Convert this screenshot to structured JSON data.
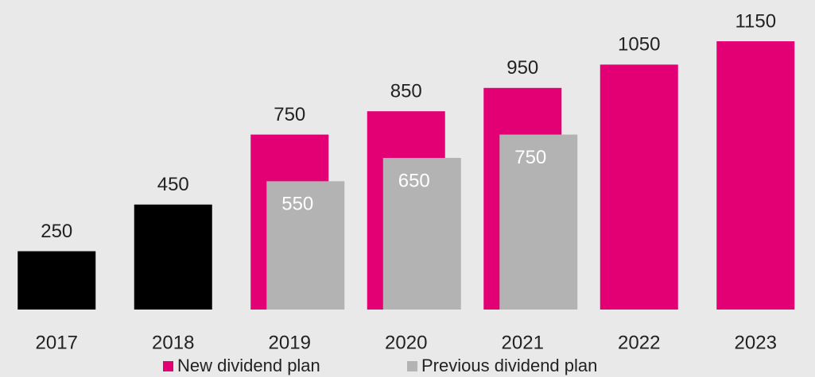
{
  "chart_data": {
    "type": "bar",
    "categories": [
      "2017",
      "2018",
      "2019",
      "2020",
      "2021",
      "2022",
      "2023"
    ],
    "series": [
      {
        "name": "New dividend plan",
        "color": "#e20074",
        "colors": [
          "#000000",
          "#000000",
          "#e20074",
          "#e20074",
          "#e20074",
          "#e20074",
          "#e20074"
        ],
        "values": [
          250,
          450,
          750,
          850,
          950,
          1050,
          1150
        ]
      },
      {
        "name": "Previous dividend plan",
        "color": "#b3b3b3",
        "values": [
          null,
          null,
          550,
          650,
          750,
          null,
          null
        ]
      }
    ],
    "ylim": [
      0,
      1150
    ]
  }
}
